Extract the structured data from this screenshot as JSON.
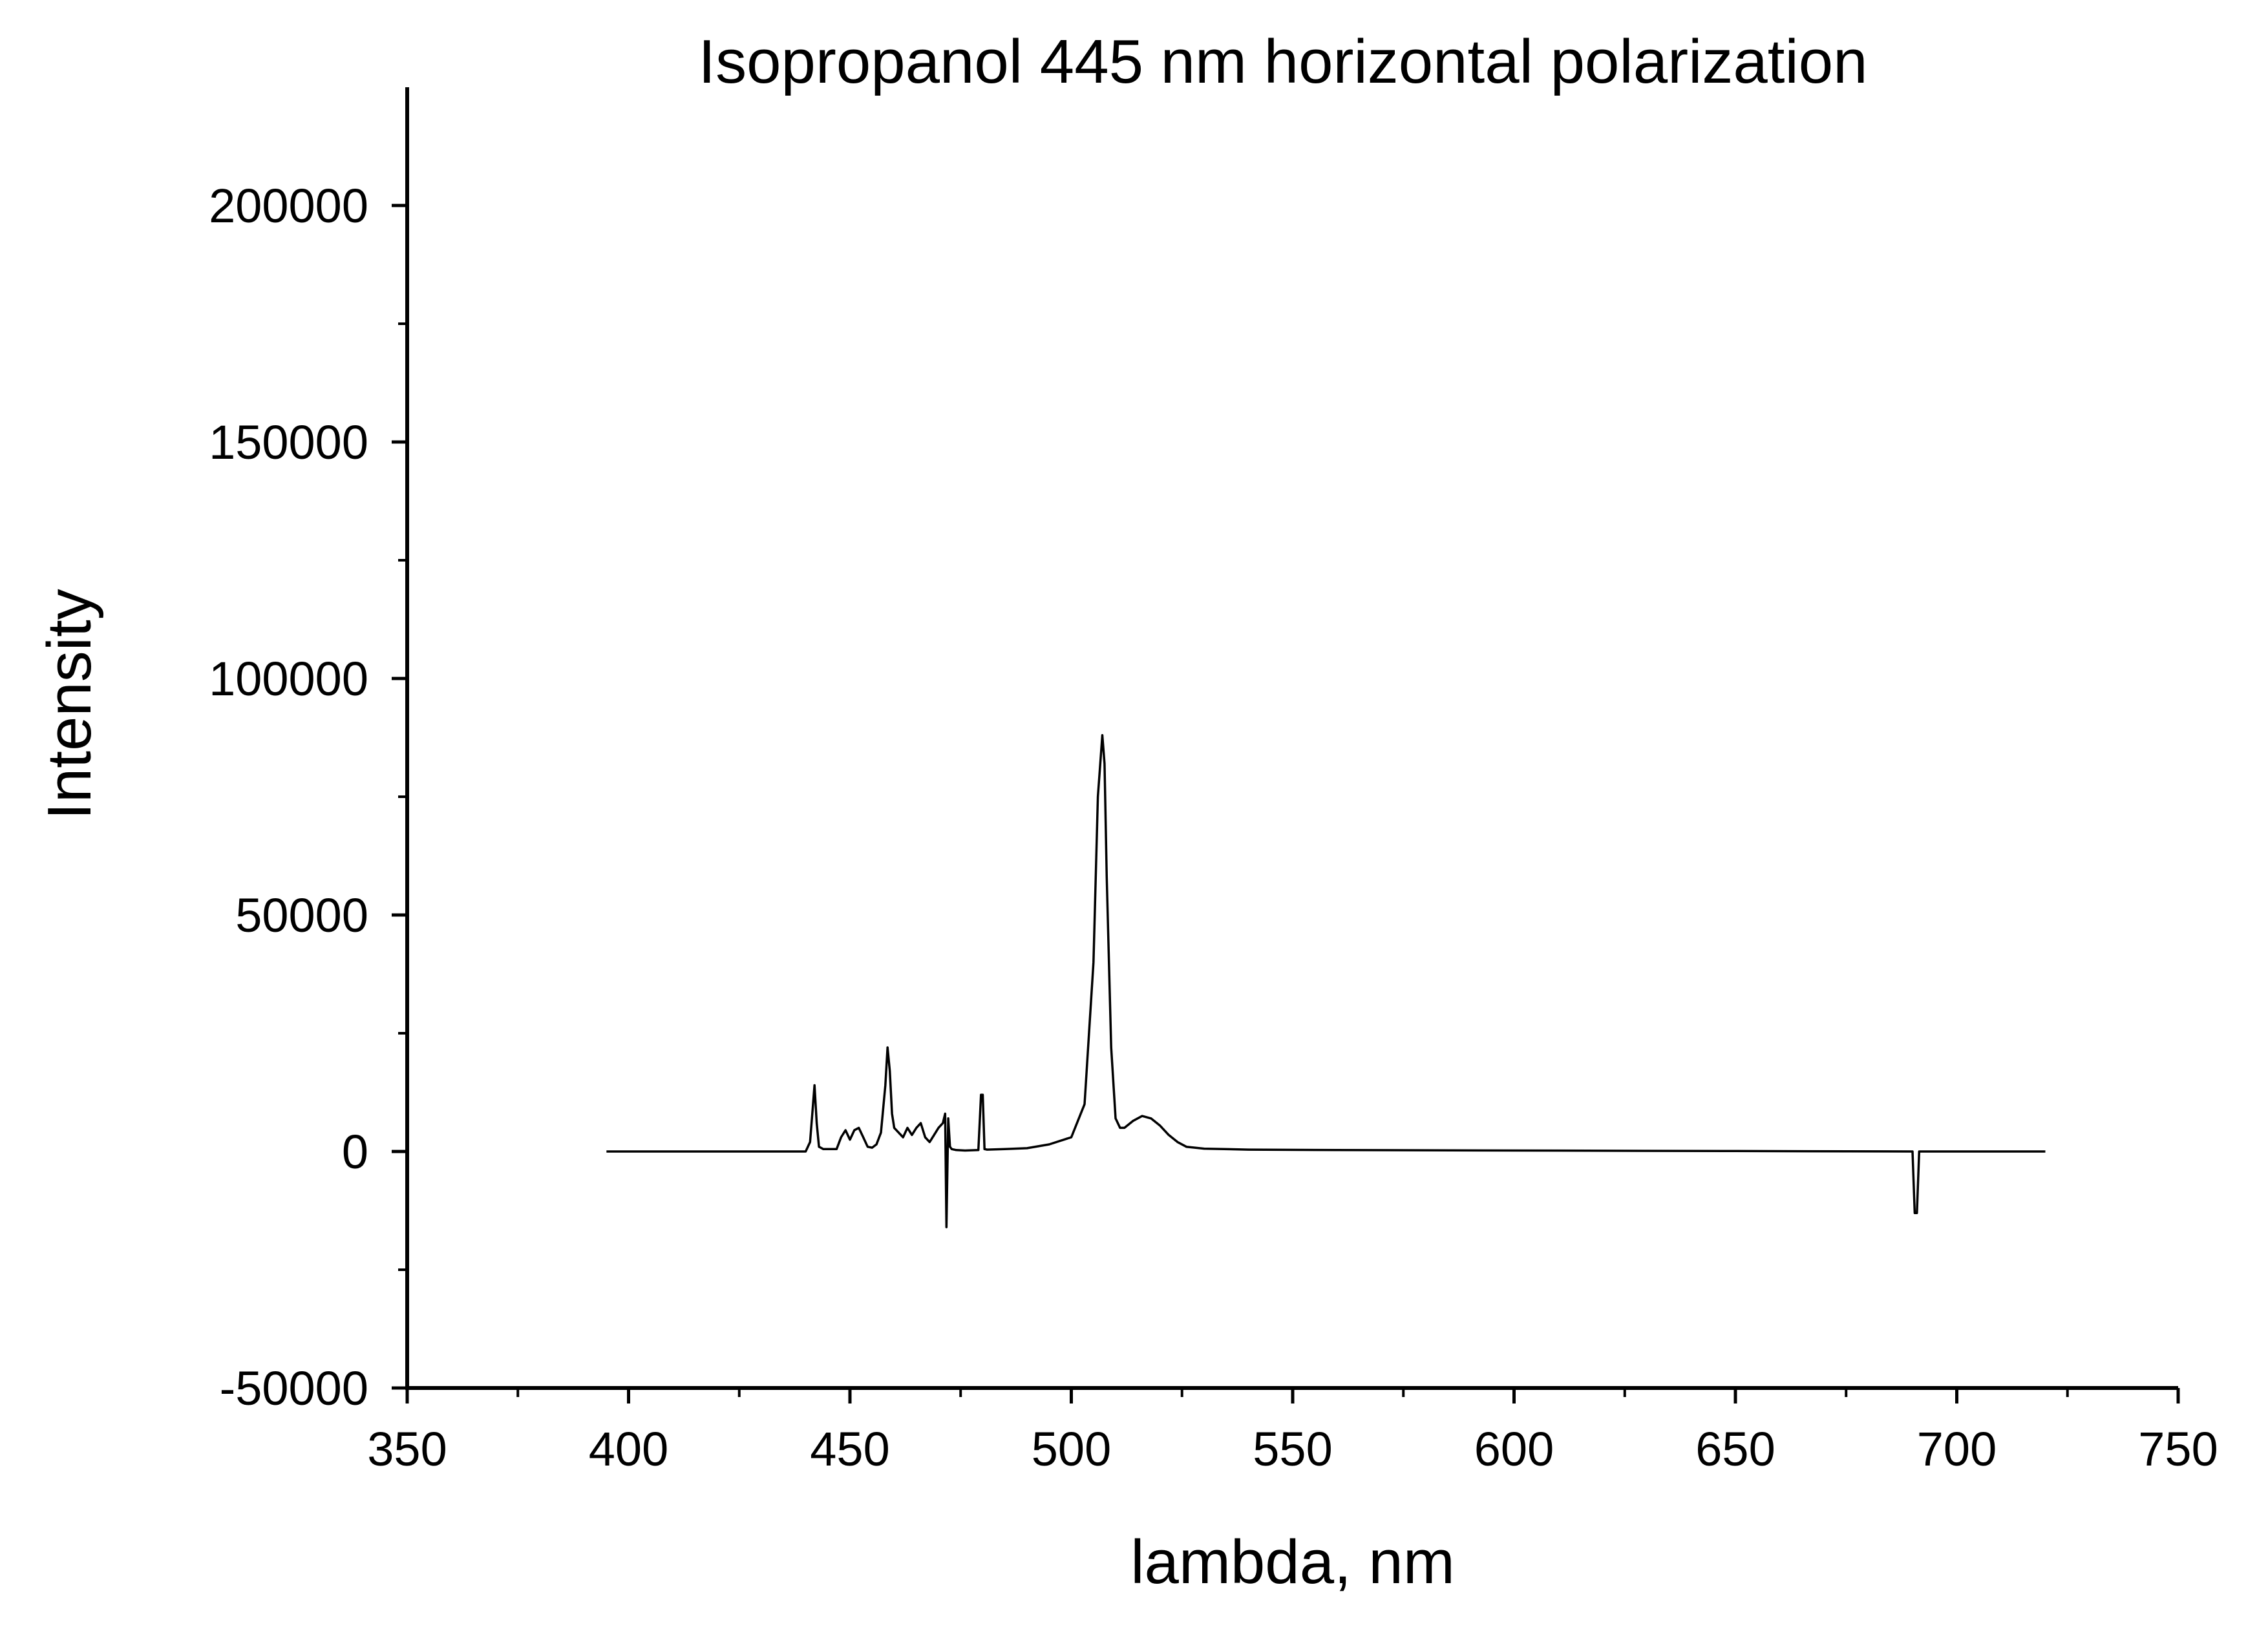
{
  "chart_data": {
    "type": "line",
    "title": "Isopropanol 445 nm horizontal polarization",
    "xlabel": "lambda, nm",
    "ylabel": "Intensity",
    "xlim": [
      350,
      750
    ],
    "ylim": [
      -50000,
      225000
    ],
    "x_ticks": [
      350,
      400,
      450,
      500,
      550,
      600,
      650,
      700,
      750
    ],
    "y_ticks": [
      -50000,
      0,
      50000,
      100000,
      150000,
      200000
    ],
    "x_tick_labels": [
      "350",
      "400",
      "450",
      "500",
      "550",
      "600",
      "650",
      "700",
      "750"
    ],
    "y_tick_labels": [
      "-50000",
      "0",
      "50000",
      "100000",
      "150000",
      "200000"
    ],
    "grid": false,
    "series": [
      {
        "color": "#000000",
        "x": [
          395,
          420,
          440,
          441,
          441.5,
          442,
          442.5,
          443,
          444,
          447,
          448,
          449,
          450,
          451,
          452,
          453,
          454,
          455,
          456,
          457,
          458,
          458.5,
          459,
          459.5,
          460,
          461,
          462,
          463,
          464,
          465,
          466,
          467,
          468,
          469,
          470,
          471,
          471.5,
          471.8,
          472.2,
          472.6,
          473,
          474,
          476,
          479,
          479.6,
          480,
          480.4,
          481,
          485,
          490,
          495,
          500,
          503,
          505,
          506,
          507,
          507.5,
          508,
          509,
          510,
          511,
          512,
          514,
          516,
          518,
          520,
          522,
          524,
          526,
          530,
          540,
          560,
          600,
          650,
          690,
          690.5,
          691,
          691.5,
          720
        ],
        "y": [
          0,
          0,
          0,
          2000,
          8000,
          14000,
          6000,
          1000,
          500,
          500,
          3000,
          4500,
          2500,
          4500,
          5000,
          3000,
          1000,
          800,
          1500,
          4000,
          14000,
          22000,
          17000,
          8000,
          5000,
          4000,
          3000,
          5000,
          3500,
          5000,
          6000,
          3000,
          2000,
          3500,
          5000,
          6000,
          8000,
          -16000,
          7000,
          1000,
          500,
          300,
          200,
          300,
          12000,
          12000,
          500,
          400,
          500,
          700,
          1500,
          3000,
          10000,
          40000,
          75000,
          88000,
          82000,
          58000,
          22000,
          7000,
          5000,
          5000,
          6500,
          7500,
          7000,
          5500,
          3500,
          2000,
          1000,
          600,
          400,
          300,
          200,
          100,
          0,
          -13000,
          -13000,
          0,
          0
        ]
      }
    ]
  }
}
